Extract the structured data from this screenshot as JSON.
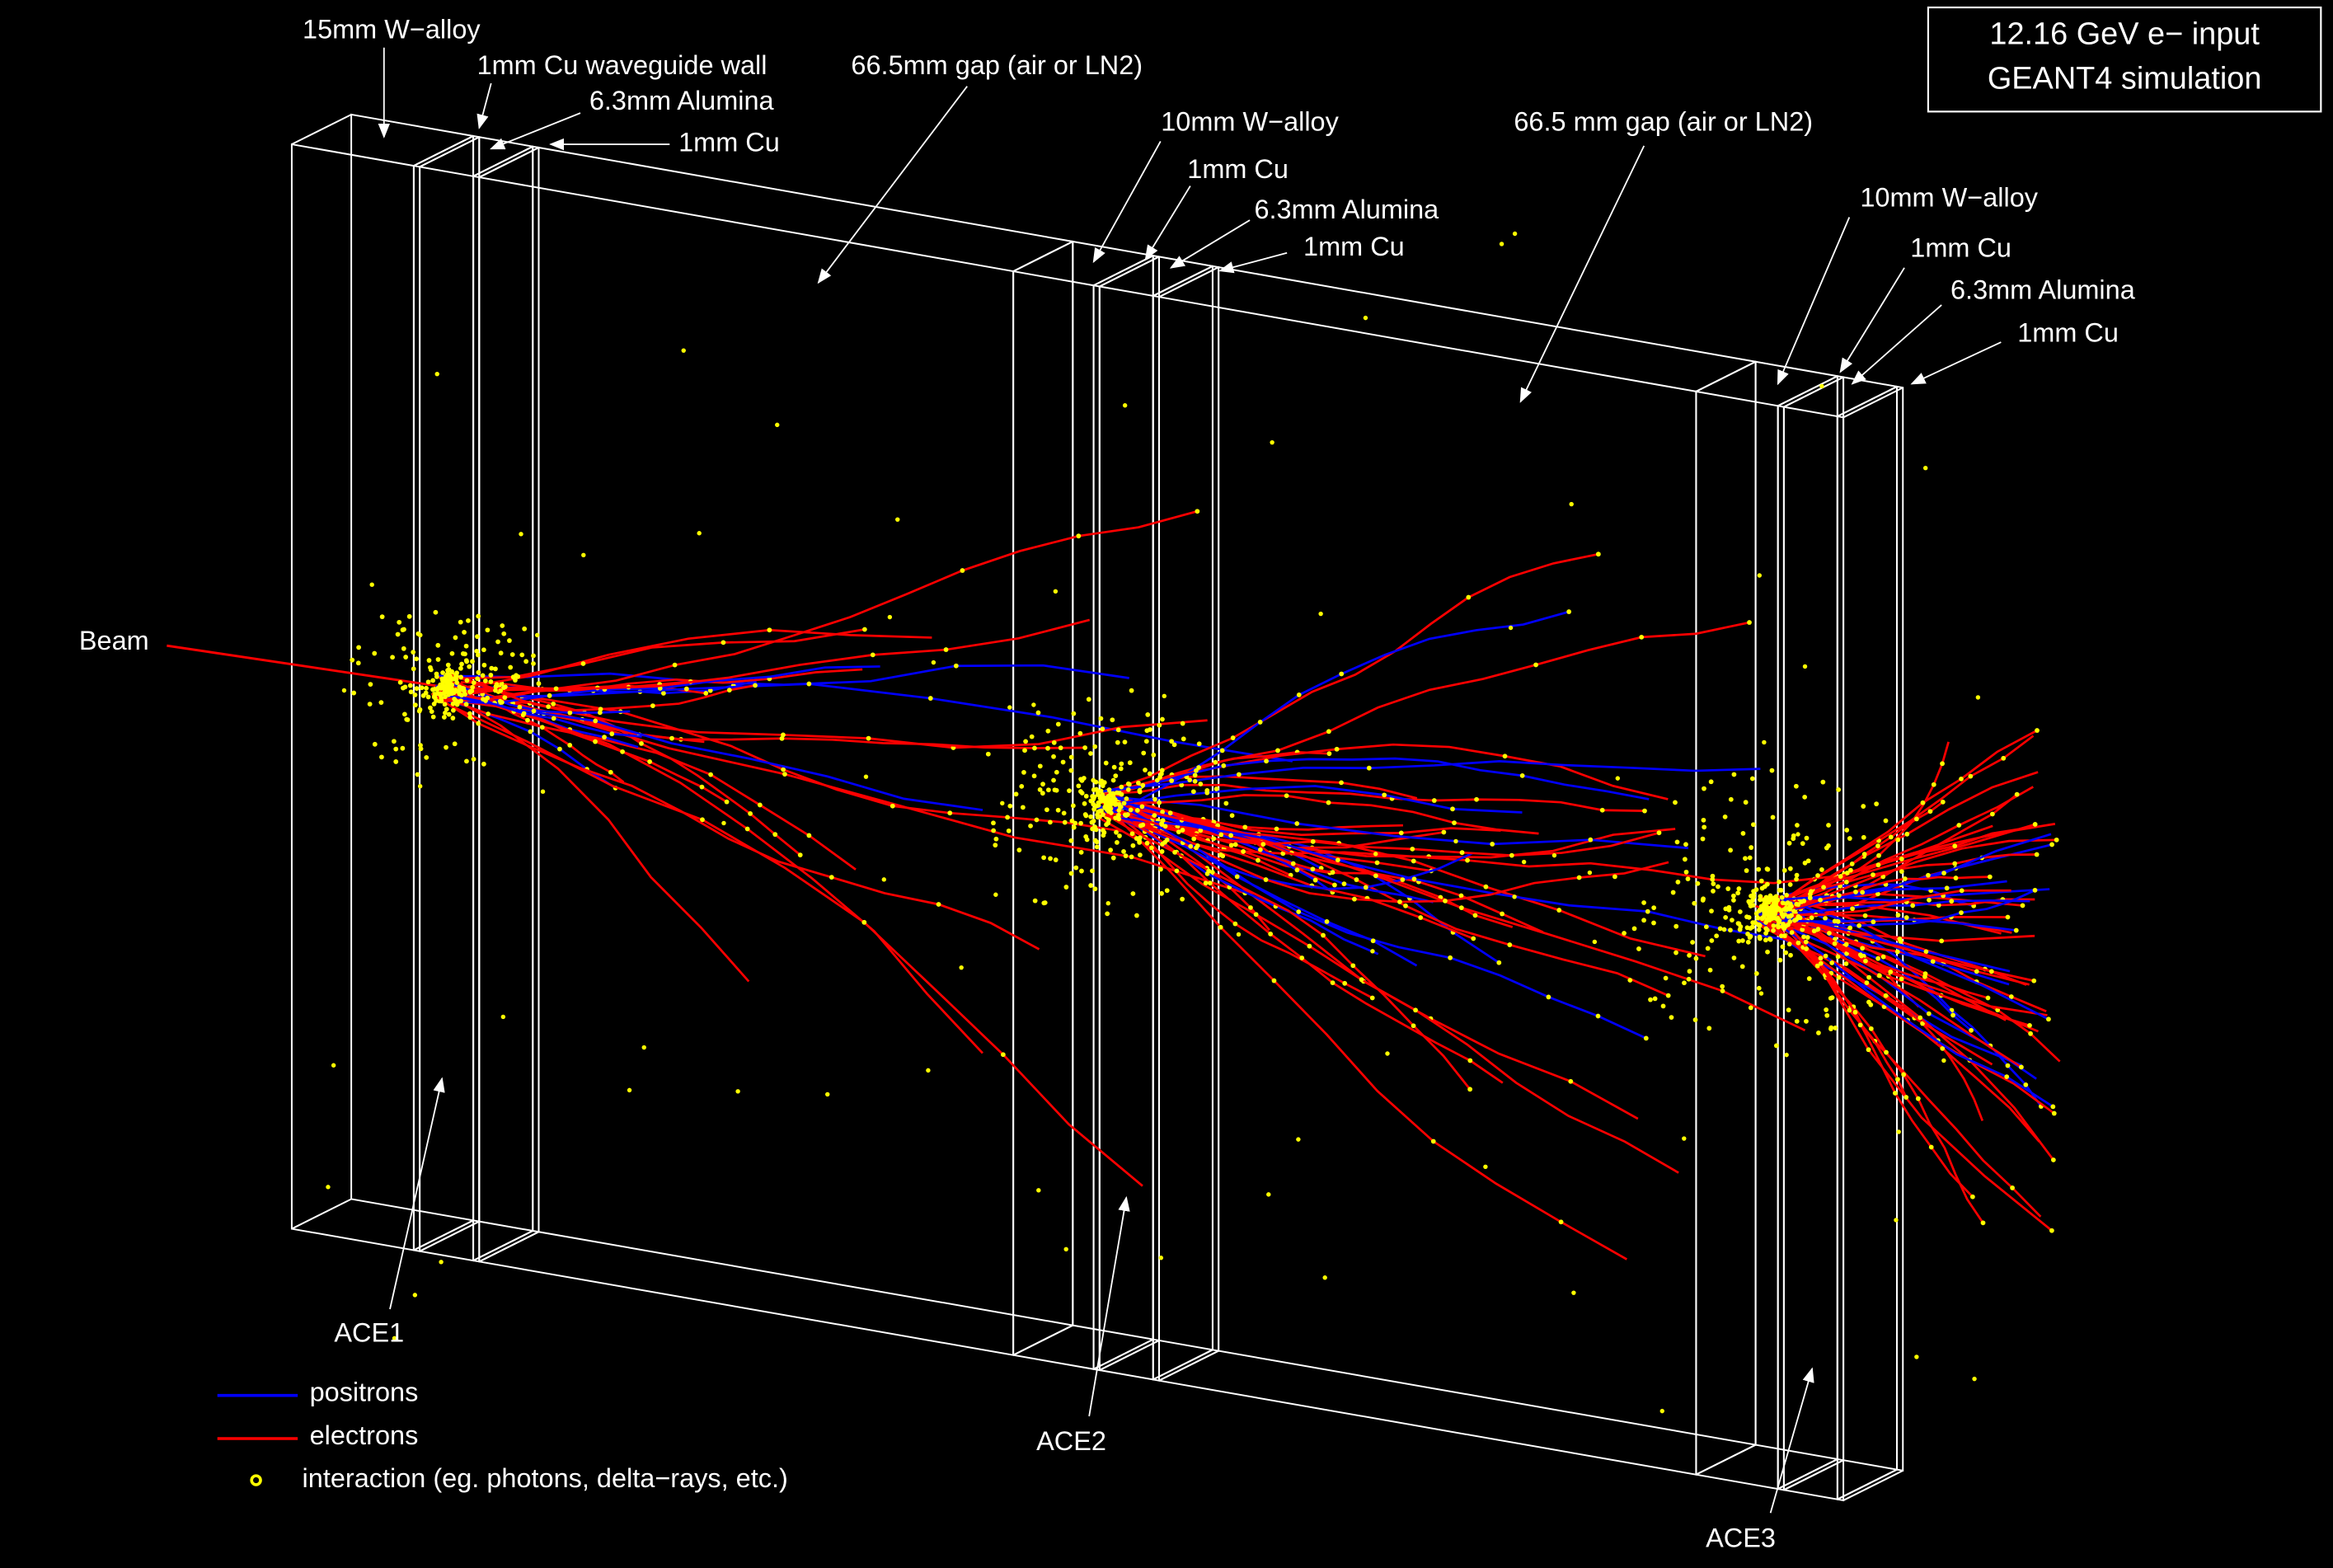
{
  "title": {
    "lines": [
      "12.16 GeV e− input",
      "GEANT4 simulation"
    ]
  },
  "beam": "Beam",
  "layer_labels": [
    "15mm W−alloy",
    "1mm Cu waveguide wall",
    "6.3mm Alumina",
    "1mm Cu",
    "66.5mm gap (air or LN2)",
    "10mm W−alloy",
    "1mm Cu",
    "6.3mm Alumina",
    "1mm Cu",
    "66.5 mm gap (air or LN2)",
    "10mm W−alloy",
    "1mm Cu",
    "6.3mm Alumina",
    "1mm Cu"
  ],
  "stations": [
    "ACE1",
    "ACE2",
    "ACE3"
  ],
  "legend": [
    {
      "label": "positrons",
      "color": "#0000ff"
    },
    {
      "label": "electrons",
      "color": "#ff0000"
    },
    {
      "label": "interaction (eg. photons, delta−rays, etc.)",
      "color": "#ffff00"
    }
  ]
}
